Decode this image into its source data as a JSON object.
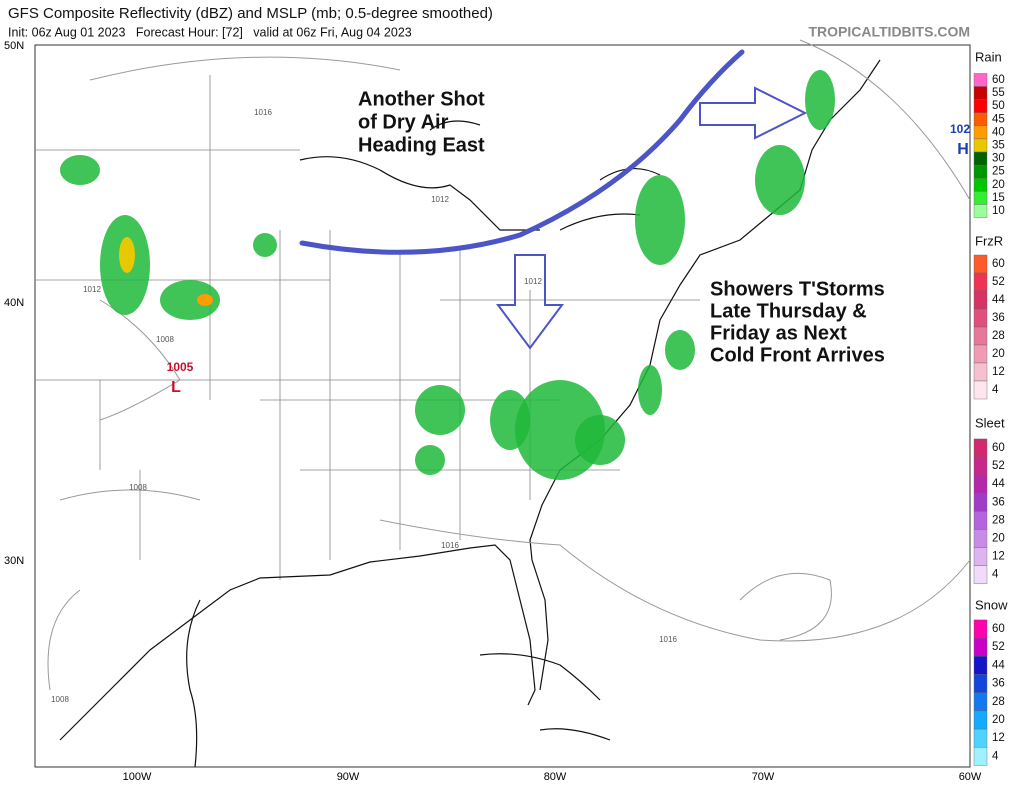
{
  "header": {
    "title": "GFS Composite Reflectivity (dBZ) and MSLP (mb; 0.5-degree smoothed)",
    "subtitle": "Init: 06z Aug 01 2023   Forecast Hour: [72]   valid at 06z Fri, Aug 04 2023",
    "watermark": "TROPICALTIDBITS.COM"
  },
  "axes": {
    "longitudes": [
      "100W",
      "90W",
      "80W",
      "70W",
      "60W"
    ],
    "latitudes": [
      "50N",
      "40N",
      "30N"
    ]
  },
  "annotations": [
    {
      "lines": [
        "Another Shot",
        "of Dry Air",
        "Heading East"
      ]
    },
    {
      "lines": [
        "Showers T'Storms",
        "Late Thursday &",
        "Friday as Next",
        "Cold Front Arrives"
      ]
    }
  ],
  "pressure_labels": [
    "1016",
    "1012",
    "1012",
    "1008",
    "1005",
    "L",
    "1008",
    "1012",
    "1016",
    "1016",
    "1008",
    "102",
    "H"
  ],
  "legends": [
    {
      "title": "Rain",
      "levels": [
        60,
        55,
        50,
        45,
        40,
        35,
        30,
        25,
        20,
        15,
        10
      ],
      "colors": [
        "#ff66cc",
        "#c80000",
        "#ff0000",
        "#ff5a00",
        "#ff9c00",
        "#e8c800",
        "#006400",
        "#009600",
        "#00c800",
        "#33ee33",
        "#99ff99"
      ]
    },
    {
      "title": "FrzR",
      "levels": [
        60,
        52,
        44,
        36,
        28,
        20,
        12,
        4
      ],
      "colors": [
        "#ff5a2a",
        "#ee3355",
        "#d63366",
        "#e0507a",
        "#e8789a",
        "#f09ab4",
        "#f7c0d0",
        "#ffe6ee"
      ]
    },
    {
      "title": "Sleet",
      "levels": [
        60,
        52,
        44,
        36,
        28,
        20,
        12,
        4
      ],
      "colors": [
        "#d2286e",
        "#c8288c",
        "#b428aa",
        "#a03cc8",
        "#b464dc",
        "#c88ce6",
        "#dcb4f0",
        "#f0dcfa"
      ]
    },
    {
      "title": "Snow",
      "levels": [
        60,
        52,
        44,
        36,
        28,
        20,
        12,
        4
      ],
      "colors": [
        "#ff00aa",
        "#c800c8",
        "#1414c8",
        "#1446dc",
        "#1478f0",
        "#14aaff",
        "#50d2ff",
        "#a0f0ff"
      ]
    }
  ]
}
